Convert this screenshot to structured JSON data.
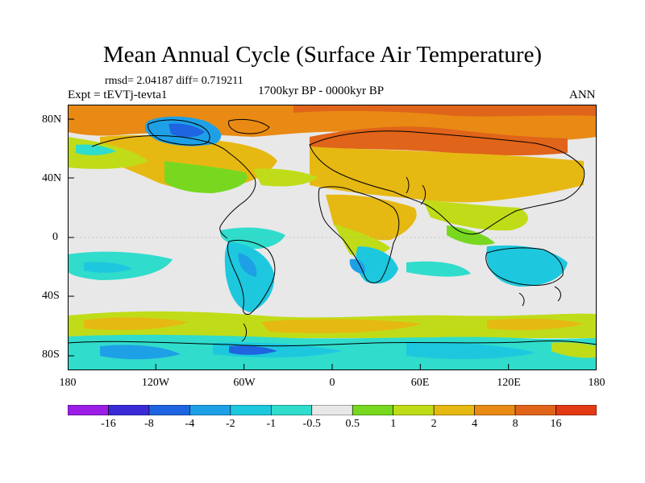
{
  "title": "Mean Annual Cycle (Surface Air Temperature)",
  "stats": "rmsd= 2.04187 diff= 0.719211",
  "experiment": "Expt = tEVTj-tevta1",
  "period": "1700kyr BP - 0000kyr BP",
  "season": "ANN",
  "lat_ticks": [
    "80N",
    "40N",
    "0",
    "40S",
    "80S"
  ],
  "lon_ticks": [
    "180",
    "120W",
    "60W",
    "0",
    "60E",
    "120E",
    "180"
  ],
  "colorbar": {
    "labels": [
      "-16",
      "-8",
      "-4",
      "-2",
      "-1",
      "-0.5",
      "0.5",
      "1",
      "2",
      "4",
      "8",
      "16"
    ],
    "colors": [
      "#9b1de6",
      "#3a2bd6",
      "#1f64e0",
      "#1ea0e6",
      "#1dc8de",
      "#30dccc",
      "#e8e8e8",
      "#78d820",
      "#c0dc18",
      "#e6b812",
      "#e88a14",
      "#e0641a",
      "#e23a14"
    ]
  }
}
